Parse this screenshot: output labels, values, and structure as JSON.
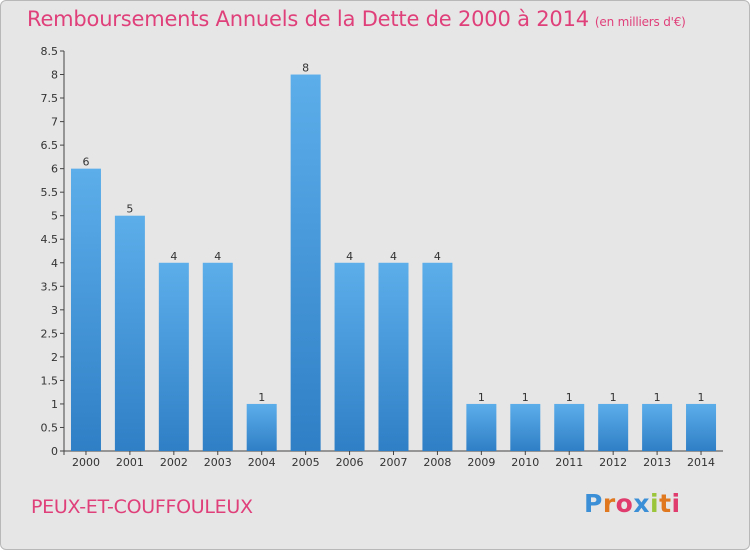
{
  "chart_data": {
    "type": "bar",
    "title": "Remboursements Annuels de la Dette de 2000 à 2014",
    "unit": "(en milliers d'€)",
    "categories": [
      "2000",
      "2001",
      "2002",
      "2003",
      "2004",
      "2005",
      "2006",
      "2007",
      "2008",
      "2009",
      "2010",
      "2011",
      "2012",
      "2013",
      "2014"
    ],
    "values": [
      6,
      5,
      4,
      4,
      1,
      8,
      4,
      4,
      4,
      1,
      1,
      1,
      1,
      1,
      1
    ],
    "data_labels": [
      "6",
      "5",
      "4",
      "4",
      "1",
      "8",
      "4",
      "4",
      "4",
      "1",
      "1",
      "1",
      "1",
      "1",
      "1"
    ],
    "ylim": [
      0,
      8.5
    ],
    "yticks": [
      0,
      0.5,
      1,
      1.5,
      2,
      2.5,
      3,
      3.5,
      4,
      4.5,
      5,
      5.5,
      6,
      6.5,
      7,
      7.5,
      8,
      8.5
    ],
    "ytick_labels": [
      "0",
      "0.5",
      "1",
      "1.5",
      "2",
      "2.5",
      "3",
      "3.5",
      "4",
      "4.5",
      "5",
      "5.5",
      "6",
      "6.5",
      "7",
      "7.5",
      "8",
      "8.5"
    ],
    "grid": false,
    "bar_color": "#3a8fd8"
  },
  "footer": {
    "commune": "PEUX-ET-COUFFOULEUX",
    "logo_letters": [
      "P",
      "r",
      "o",
      "x",
      "i",
      "t",
      "i"
    ],
    "logo_colors": [
      "#3b8fd6",
      "#e07820",
      "#e03c6e",
      "#3b8fd6",
      "#9bc63b",
      "#e07820",
      "#e03c6e"
    ]
  }
}
